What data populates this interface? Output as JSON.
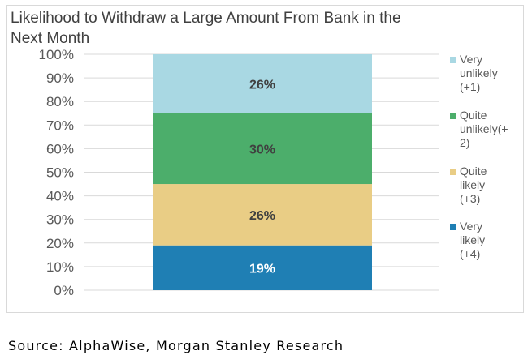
{
  "chart_data": {
    "type": "bar",
    "stacked": true,
    "percent": true,
    "title": "Likelihood to Withdraw a Large Amount From Bank in the Next Month",
    "categories": [
      ""
    ],
    "series": [
      {
        "name": "Very likely (+4)",
        "legend_lines": [
          "Very",
          "likely",
          "(+4)"
        ],
        "values": [
          19
        ],
        "label": "19%",
        "color": "#1f7fb4",
        "label_color": "#ffffff"
      },
      {
        "name": "Quite likely (+3)",
        "legend_lines": [
          "Quite",
          "likely",
          "(+3)"
        ],
        "values": [
          26
        ],
        "label": "26%",
        "color": "#e9cd85",
        "label_color": "#404040"
      },
      {
        "name": "Quite unlikely(+2)",
        "legend_lines": [
          "Quite",
          "unlikely(+",
          "2)"
        ],
        "values": [
          30
        ],
        "label": "30%",
        "color": "#4cae6b",
        "label_color": "#404040"
      },
      {
        "name": "Very unlikely (+1)",
        "legend_lines": [
          "Very",
          "unlikely",
          "(+1)"
        ],
        "values": [
          26
        ],
        "label": "26%",
        "color": "#a9d8e3",
        "label_color": "#404040"
      }
    ],
    "ylim": [
      0,
      100
    ],
    "yticks": [
      "0%",
      "10%",
      "20%",
      "30%",
      "40%",
      "50%",
      "60%",
      "70%",
      "80%",
      "90%",
      "100%"
    ],
    "grid": true,
    "legend": "right"
  },
  "footer": {
    "source": "Source: AlphaWise, Morgan Stanley Research"
  }
}
